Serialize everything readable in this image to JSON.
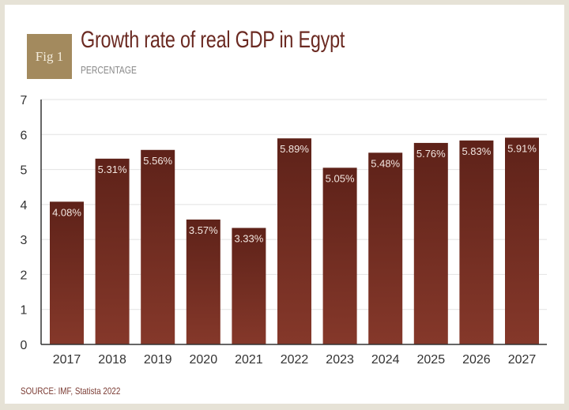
{
  "figure_badge": "Fig 1",
  "chart_data": {
    "type": "bar",
    "title": "Growth rate of real GDP in Egypt",
    "subtitle": "PERCENTAGE",
    "source": "SOURCE: IMF, Statista 2022",
    "categories": [
      "2017",
      "2018",
      "2019",
      "2020",
      "2021",
      "2022",
      "2023",
      "2024",
      "2025",
      "2026",
      "2027"
    ],
    "values": [
      4.08,
      5.31,
      5.56,
      3.57,
      3.33,
      5.89,
      5.05,
      5.48,
      5.76,
      5.83,
      5.91
    ],
    "data_labels": [
      "4.08%",
      "5.31%",
      "5.56%",
      "3.57%",
      "3.33%",
      "5.89%",
      "5.05%",
      "5.48%",
      "5.76%",
      "5.83%",
      "5.91%"
    ],
    "yticks": [
      0,
      1,
      2,
      3,
      4,
      5,
      6,
      7
    ],
    "ylim": [
      0,
      7
    ],
    "grid": true,
    "bar_color_top": "#5e2219",
    "bar_color_bottom": "#85382a",
    "title_color": "#6b2a22",
    "badge_color": "#a38a5e"
  }
}
